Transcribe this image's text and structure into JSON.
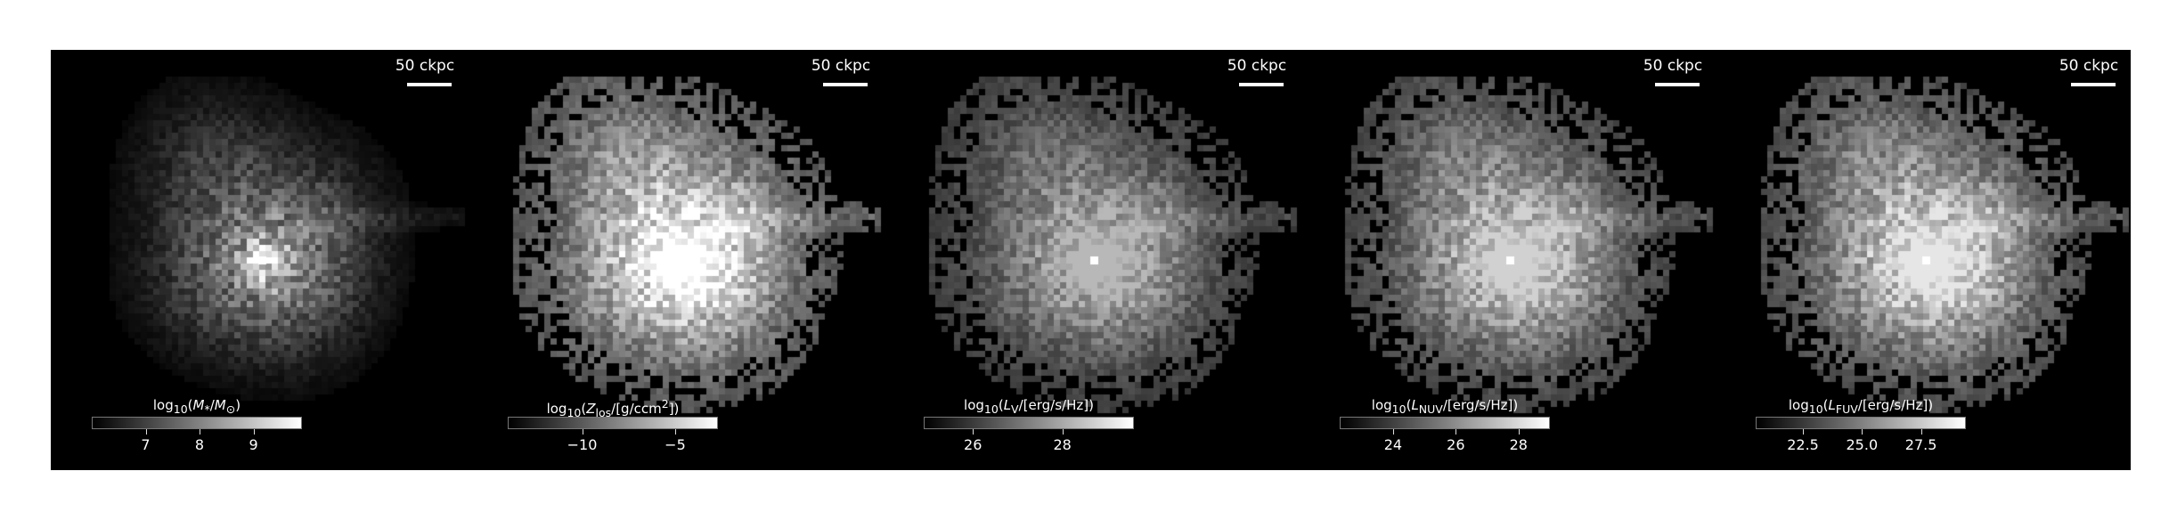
{
  "scale_bar": "50 ckpc",
  "panels": [
    {
      "id": "mstar",
      "colorbar": {
        "label": "log10(M*/M⊙)",
        "ticks": [
          {
            "v": 7,
            "label": "7"
          },
          {
            "v": 8,
            "label": "8"
          },
          {
            "v": 9,
            "label": "9"
          }
        ],
        "range": [
          6.0,
          9.9
        ]
      },
      "brightness": 0.45
    },
    {
      "id": "zlos",
      "colorbar": {
        "label": "log10(Zlos/[g/ccm²])",
        "ticks": [
          {
            "v": -10,
            "label": "−10"
          },
          {
            "v": -5,
            "label": "−5"
          }
        ],
        "range": [
          -14,
          -2.7
        ]
      },
      "brightness": 1.0
    },
    {
      "id": "lv",
      "colorbar": {
        "label": "log10(LV/[erg/s/Hz])",
        "ticks": [
          {
            "v": 26,
            "label": "26"
          },
          {
            "v": 28,
            "label": "28"
          }
        ],
        "range": [
          24.9,
          29.6
        ]
      },
      "brightness": 0.72
    },
    {
      "id": "lnuv",
      "colorbar": {
        "label": "log10(LNUV/[erg/s/Hz])",
        "ticks": [
          {
            "v": 24,
            "label": "24"
          },
          {
            "v": 26,
            "label": "26"
          },
          {
            "v": 28,
            "label": "28"
          }
        ],
        "range": [
          22.3,
          29.0
        ]
      },
      "brightness": 0.82
    },
    {
      "id": "lfuv",
      "colorbar": {
        "label": "log10(LFUV/[erg/s/Hz])",
        "ticks": [
          {
            "v": 22.5,
            "label": "22.5"
          },
          {
            "v": 25.0,
            "label": "25.0"
          },
          {
            "v": 27.5,
            "label": "27.5"
          }
        ],
        "range": [
          20.5,
          29.4
        ]
      },
      "brightness": 0.9
    }
  ]
}
